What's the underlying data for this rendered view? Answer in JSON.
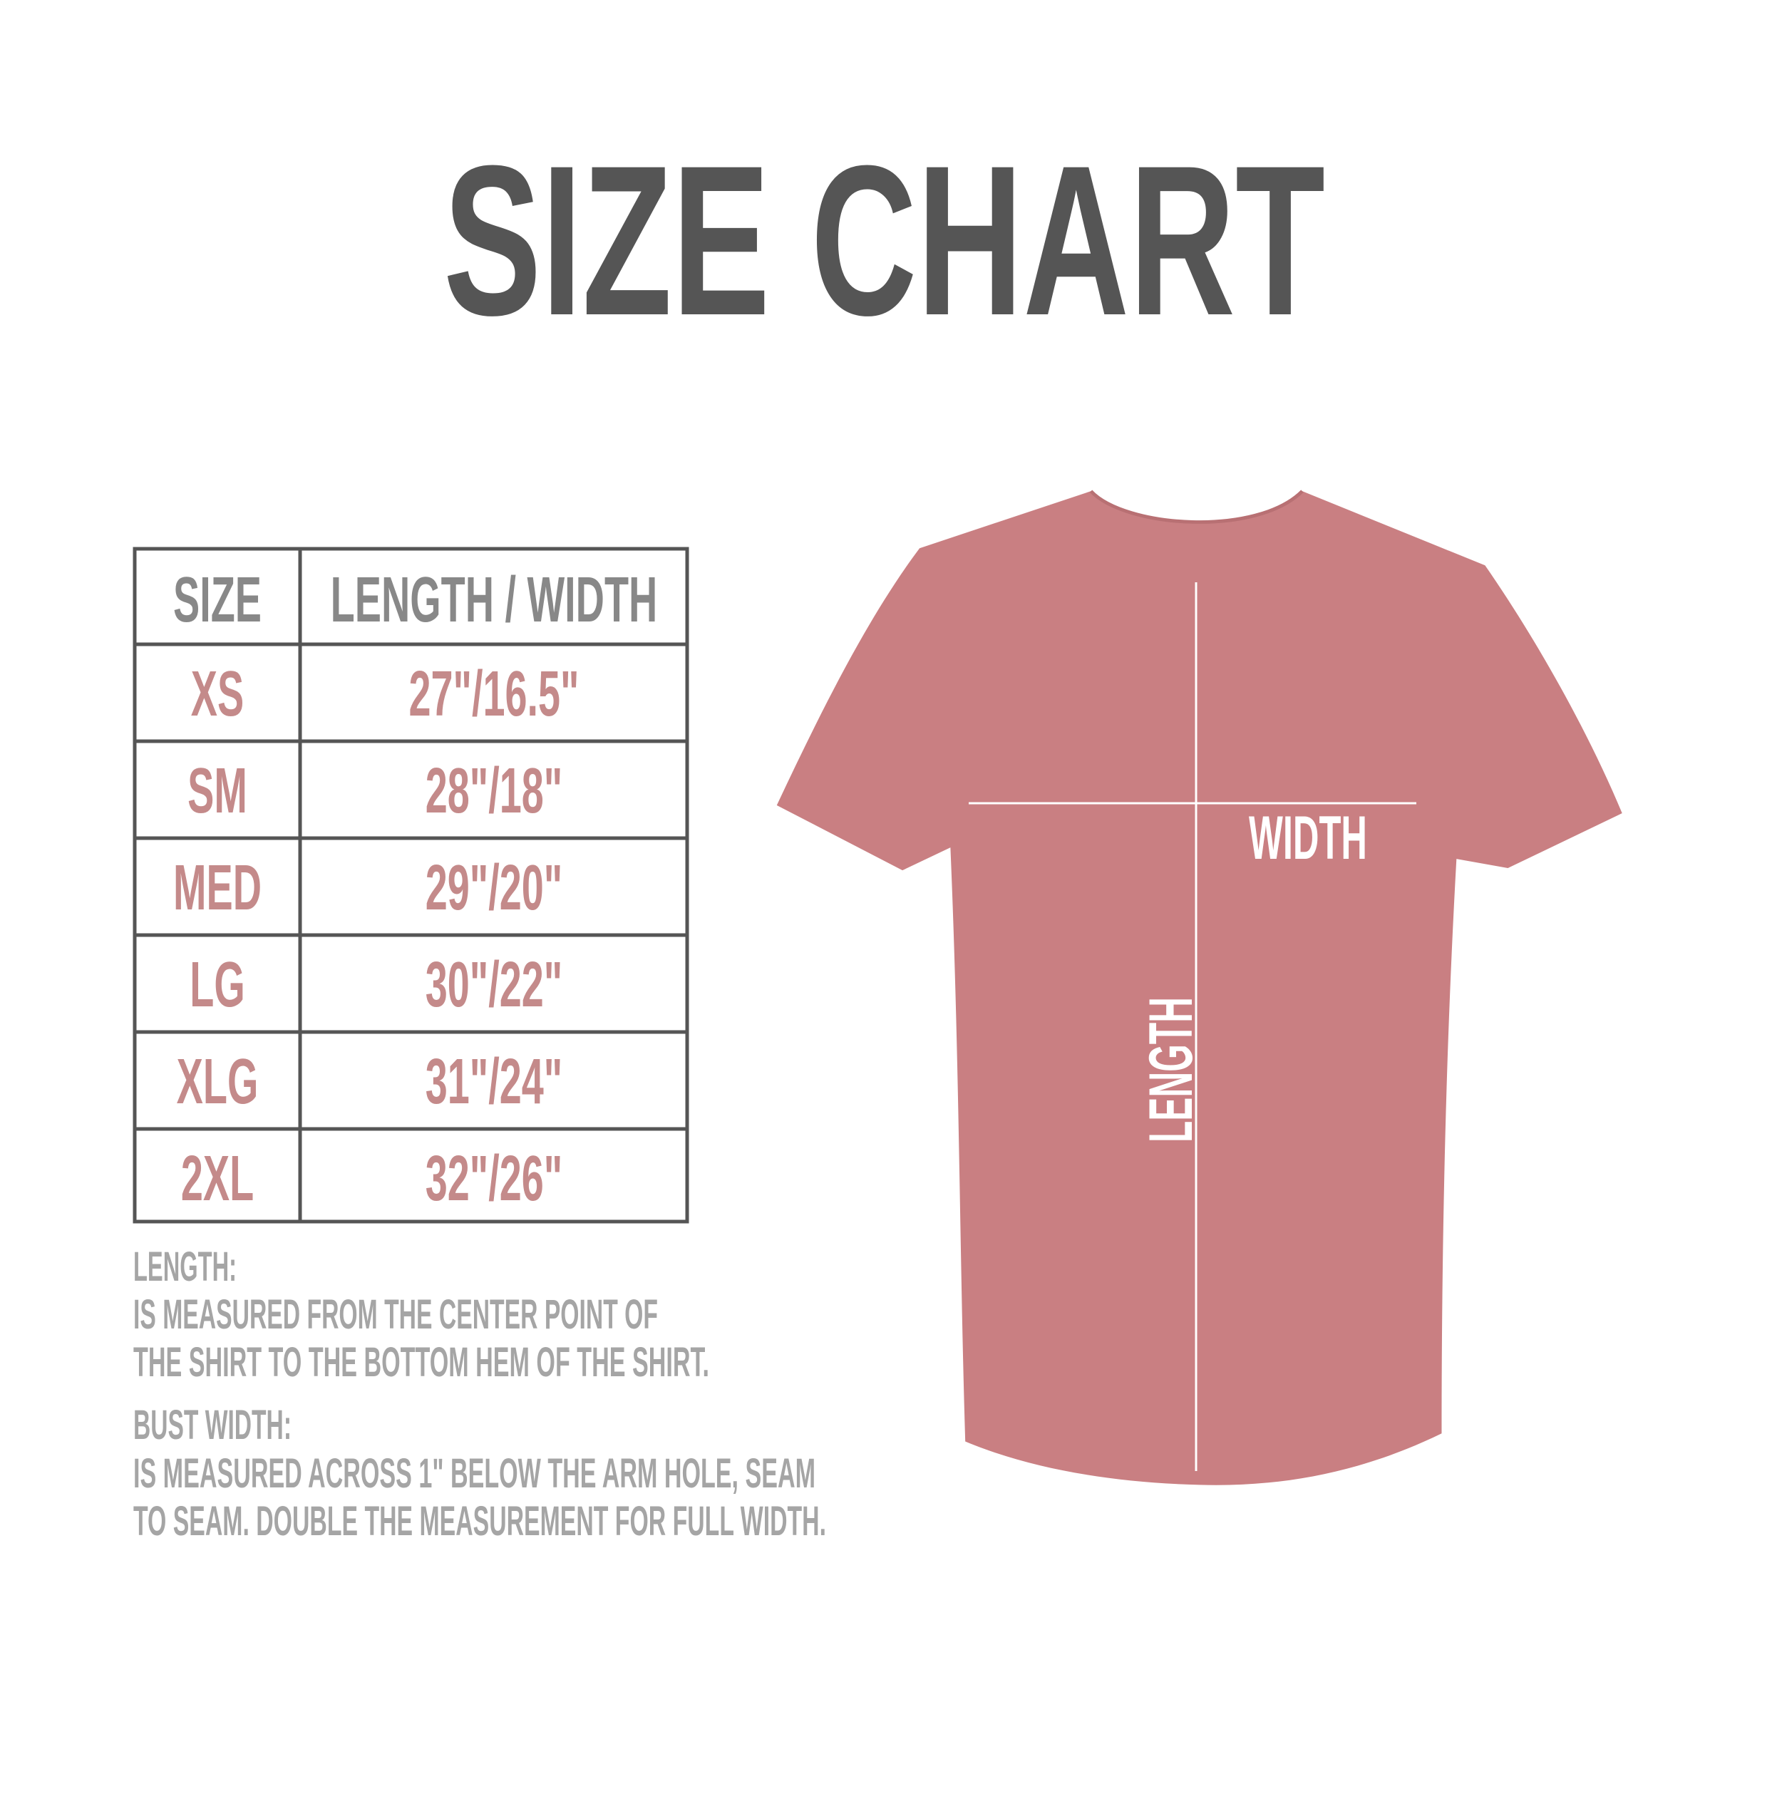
{
  "title": "SIZE CHART",
  "table": {
    "headers": [
      "SIZE",
      "LENGTH / WIDTH"
    ],
    "rows": [
      {
        "size": "XS",
        "measure": "27\"/16.5\""
      },
      {
        "size": "SM",
        "measure": "28\"/18\""
      },
      {
        "size": "MED",
        "measure": "29\"/20\""
      },
      {
        "size": "LG",
        "measure": "30\"/22\""
      },
      {
        "size": "XLG",
        "measure": "31\"/24\""
      },
      {
        "size": "2XL",
        "measure": "32\"/26\""
      }
    ]
  },
  "notes": {
    "length_heading": "LENGTH:",
    "length_lines": [
      "IS MEASURED FROM THE CENTER POINT OF",
      "THE SHIRT TO THE BOTTOM HEM OF THE SHIRT."
    ],
    "width_heading": "BUST WIDTH:",
    "width_lines": [
      "IS MEASURED ACROSS  1\" BELOW THE ARM HOLE, SEAM",
      "TO SEAM. DOUBLE THE MEASUREMENT FOR FULL WIDTH."
    ]
  },
  "shirt": {
    "width_label": "WIDTH",
    "length_label": "LENGTH",
    "color": "#c97f82"
  },
  "colors": {
    "title": "#555555",
    "header_text": "#888888",
    "value_text": "#c48a8a",
    "note_text": "#a5a5a5",
    "table_border": "#555555"
  }
}
